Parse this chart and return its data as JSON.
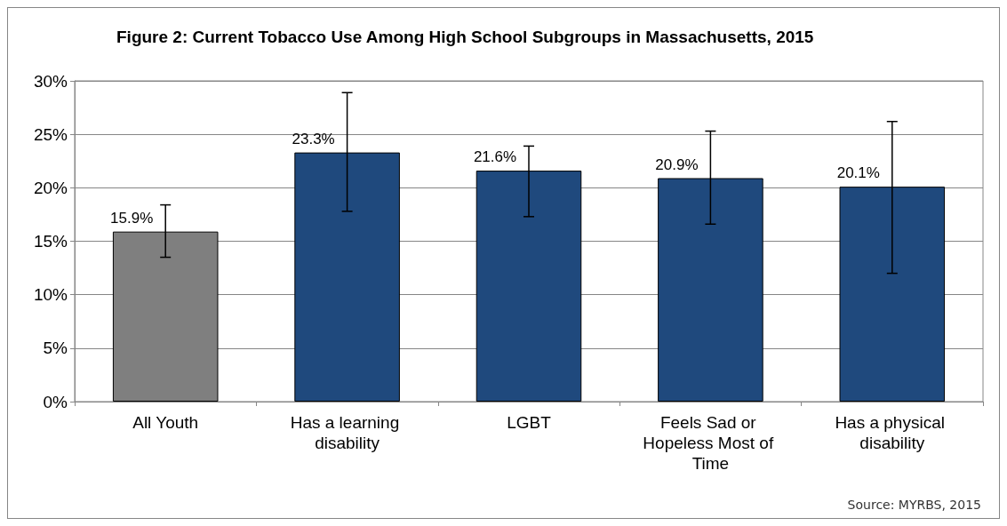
{
  "chart_data": {
    "type": "bar",
    "title": "Figure 2: Current Tobacco Use Among High School Subgroups in Massachusetts, 2015",
    "categories": [
      "All Youth",
      "Has a learning disability",
      "LGBT",
      "Feels Sad or Hopeless Most of Time",
      "Has a physical disability"
    ],
    "values": [
      15.9,
      23.3,
      21.6,
      20.9,
      20.1
    ],
    "colors": [
      "#7f7f7f",
      "#1f497d",
      "#1f497d",
      "#1f497d",
      "#1f497d"
    ],
    "value_labels": [
      "15.9%",
      "23.3%",
      "21.6%",
      "20.9%",
      "20.1%"
    ],
    "errors": [
      [
        13.5,
        18.4
      ],
      [
        17.8,
        28.9
      ],
      [
        17.3,
        23.9
      ],
      [
        16.6,
        25.3
      ],
      [
        12.0,
        26.2
      ]
    ],
    "ylim": [
      0,
      30
    ],
    "yticks": [
      {
        "value": 0,
        "label": "0%"
      },
      {
        "value": 5,
        "label": "5%"
      },
      {
        "value": 10,
        "label": "10%"
      },
      {
        "value": 15,
        "label": "15%"
      },
      {
        "value": 20,
        "label": "20%"
      },
      {
        "value": 25,
        "label": "25%"
      },
      {
        "value": 30,
        "label": "30%"
      }
    ],
    "grid": "y",
    "annotations": [
      "Source: MYRBS, 2015"
    ]
  }
}
